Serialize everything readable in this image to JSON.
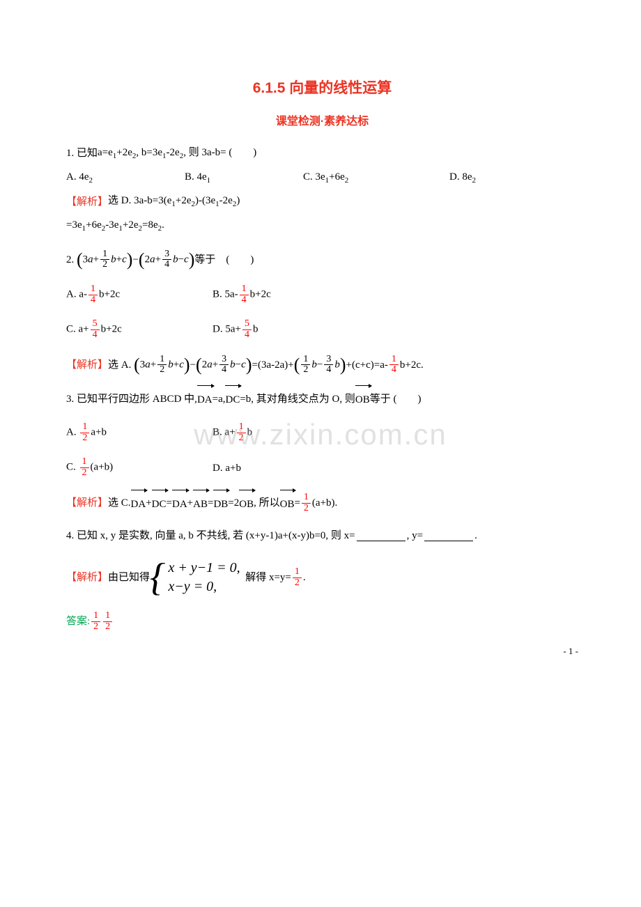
{
  "colors": {
    "title": "#eb3323",
    "subtitle": "#eb3323",
    "analysis_label": "#eb3323",
    "answer_label": "#00a651",
    "text": "#000000",
    "red_frac": "#ff0000",
    "watermark": "rgba(170,170,170,0.35)"
  },
  "title": "6.1.5 向量的线性运算",
  "subtitle": "课堂检测·素养达标",
  "q1": {
    "stem_prefix": "1. 已知 ",
    "stem_math": "a=e₁+2e₂, b=3e₁-2e₂, 则 3a-b= (　　)",
    "opts": {
      "A": "A. 4e₂",
      "B": "B. 4e₁",
      "C": "C. 3e₁+6e₂",
      "D": "D. 8e₂"
    },
    "analysis_label": "【解析】",
    "analysis_text": "选 D. 3a-b=3(e₁+2e₂)-(3e₁-2e₂)",
    "analysis_line2": "=3e₁+6e₂-3e₁+2e₂=8e₂."
  },
  "q2": {
    "num": "2.",
    "expr_tail": "等于　(　　)",
    "optA_pre": "A. a-",
    "optA_post": "b+2c",
    "optB_pre": "B. 5a-",
    "optB_post": "b+2c",
    "optC_pre": "C. a+",
    "optC_post": "b+2c",
    "optD_pre": "D. 5a+",
    "optD_post": "b",
    "analysis_label": "【解析】",
    "analysis_sel": "选 A.",
    "eq_mid": " =(3a-2a)+ ",
    "eq_tail_pre": " +(c+c)=a-",
    "eq_tail_post": "b+2c."
  },
  "q3": {
    "stem_pre": "3. 已知平行四边形 ABCD 中,  ",
    "da": "DA",
    "dc": "DC",
    "stem_mid1": "=a,  ",
    "stem_mid2": "=b, 其对角线交点为 O, 则 ",
    "ob": "OB",
    "stem_tail": "等于 (　　)",
    "optA_pre": "A. ",
    "optA_post": "a+b",
    "optB_pre": "B. a+",
    "optB_post": "b",
    "optC_pre": "C. ",
    "optC_post": "(a+b)",
    "optD": "D. a+b",
    "analysis_label": "【解析】",
    "analysis_pre": "选 C.  ",
    "ab": "AB",
    "db": "DB",
    "plus": "+ ",
    "eq": "= ",
    "two": "=2 ",
    "so": ", 所以 ",
    "tail": "(a+b)."
  },
  "q4": {
    "stem_pre": "4. 已知 x, y 是实数, 向量 a, b 不共线, 若 (x+y-1)a+(x-y)b=0, 则 x=",
    "stem_mid": ", y=",
    "stem_end": ".",
    "analysis_label": "【解析】",
    "analysis_pre": "由已知得",
    "sys1": "x + y−1 = 0,",
    "sys2": "x−y = 0,",
    "analysis_mid": "解得 x=y=",
    "analysis_end": ".",
    "answer_label": "答案:",
    "sep": "  "
  },
  "fracs": {
    "half": {
      "n": "1",
      "d": "2"
    },
    "quarter": {
      "n": "1",
      "d": "4"
    },
    "three4": {
      "n": "3",
      "d": "4"
    },
    "five4": {
      "n": "5",
      "d": "4"
    }
  },
  "watermark": "www.zixin.com.cn",
  "page_num": "- 1 -"
}
